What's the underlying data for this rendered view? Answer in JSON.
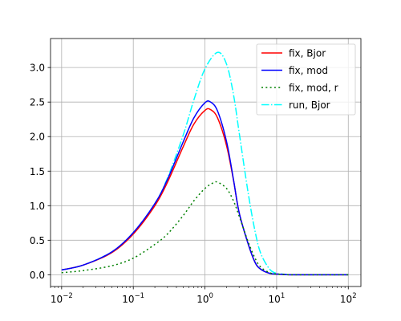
{
  "chart_data": {
    "type": "line",
    "xscale": "log",
    "xlim": [
      0.007,
      150
    ],
    "ylim": [
      -0.17,
      3.42
    ],
    "grid": true,
    "legend_position": "top-right",
    "x_ticks": [
      {
        "value": 0.01,
        "base": "10",
        "exp": "−2"
      },
      {
        "value": 0.1,
        "base": "10",
        "exp": "−1"
      },
      {
        "value": 1,
        "base": "10",
        "exp": "0"
      },
      {
        "value": 10,
        "base": "10",
        "exp": "1"
      },
      {
        "value": 100,
        "base": "10",
        "exp": "2"
      }
    ],
    "y_ticks": [
      {
        "value": 0.0,
        "label": "0.0"
      },
      {
        "value": 0.5,
        "label": "0.5"
      },
      {
        "value": 1.0,
        "label": "1.0"
      },
      {
        "value": 1.5,
        "label": "1.5"
      },
      {
        "value": 2.0,
        "label": "2.0"
      },
      {
        "value": 2.5,
        "label": "2.5"
      },
      {
        "value": 3.0,
        "label": "3.0"
      }
    ],
    "series": [
      {
        "name": "fix, Bjor",
        "color": "#ff0000",
        "dash": "solid",
        "x": [
          0.01,
          0.02,
          0.05,
          0.1,
          0.2,
          0.3,
          0.5,
          0.7,
          1.0,
          1.2,
          1.5,
          2.0,
          2.5,
          3.0,
          4.0,
          5.0,
          6.0,
          8.0,
          10,
          15,
          20,
          50,
          100
        ],
        "y": [
          0.07,
          0.14,
          0.32,
          0.59,
          1.0,
          1.34,
          1.86,
          2.18,
          2.38,
          2.39,
          2.27,
          1.87,
          1.37,
          0.9,
          0.45,
          0.18,
          0.08,
          0.02,
          0.01,
          0.0,
          0.0,
          0.0,
          0.0
        ]
      },
      {
        "name": "fix, mod",
        "color": "#0000ff",
        "dash": "solid",
        "x": [
          0.01,
          0.02,
          0.05,
          0.1,
          0.2,
          0.3,
          0.5,
          0.7,
          1.0,
          1.2,
          1.5,
          2.0,
          2.5,
          3.0,
          4.0,
          5.0,
          6.0,
          8.0,
          10,
          15,
          20,
          50,
          100
        ],
        "y": [
          0.07,
          0.14,
          0.33,
          0.61,
          1.03,
          1.38,
          1.93,
          2.27,
          2.49,
          2.5,
          2.37,
          1.93,
          1.38,
          0.9,
          0.45,
          0.18,
          0.08,
          0.02,
          0.01,
          0.0,
          0.0,
          0.0,
          0.0
        ]
      },
      {
        "name": "fix, mod, r",
        "color": "#008000",
        "dash": "dotted",
        "x": [
          0.01,
          0.02,
          0.05,
          0.1,
          0.2,
          0.3,
          0.5,
          0.7,
          1.0,
          1.3,
          1.5,
          2.0,
          2.5,
          3.0,
          4.0,
          5.0,
          6.0,
          8.0,
          10,
          15,
          20,
          50,
          100
        ],
        "y": [
          0.03,
          0.06,
          0.13,
          0.24,
          0.44,
          0.59,
          0.86,
          1.07,
          1.25,
          1.33,
          1.34,
          1.25,
          1.07,
          0.85,
          0.48,
          0.24,
          0.11,
          0.03,
          0.01,
          0.0,
          0.0,
          0.0,
          0.0
        ]
      },
      {
        "name": "run, Bjor",
        "color": "#00ffff",
        "dash": "dashdot",
        "x": [
          0.01,
          0.02,
          0.05,
          0.1,
          0.2,
          0.3,
          0.5,
          0.7,
          1.0,
          1.5,
          2.0,
          2.5,
          3.0,
          4.0,
          5.0,
          6.0,
          8.0,
          10,
          12,
          15,
          20,
          50,
          100
        ],
        "y": [
          0.07,
          0.14,
          0.33,
          0.61,
          1.03,
          1.4,
          2.03,
          2.53,
          2.98,
          3.22,
          3.05,
          2.61,
          2.06,
          1.19,
          0.63,
          0.31,
          0.08,
          0.02,
          0.01,
          0.0,
          0.0,
          0.0,
          0.0
        ]
      }
    ]
  }
}
